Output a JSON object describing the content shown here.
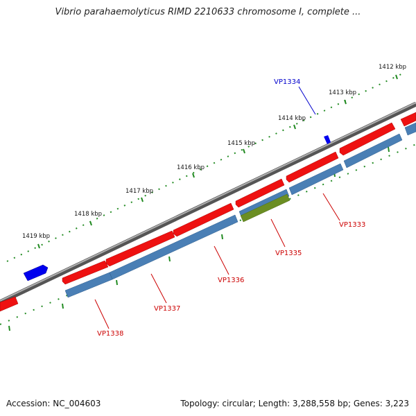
{
  "title": "Vibrio parahaemolyticus RIMD 2210633 chromosome I, complete ...",
  "footer": {
    "accession": "Accession: NC_004603",
    "summary": "Topology: circular; Length: 3,288,558 bp; Genes: 3,223"
  },
  "ticks": [
    "1412 kbp",
    "1413 kbp",
    "1414 kbp",
    "1415 kbp",
    "1416 kbp",
    "1417 kbp",
    "1418 kbp",
    "1419 kbp"
  ],
  "genes": [
    {
      "label": "VP1333",
      "color": "#cc0000"
    },
    {
      "label": "VP1334",
      "color": "#0000cc"
    },
    {
      "label": "VP1335",
      "color": "#cc0000"
    },
    {
      "label": "VP1336",
      "color": "#cc0000"
    },
    {
      "label": "VP1337",
      "color": "#cc0000"
    },
    {
      "label": "VP1338",
      "color": "#cc0000"
    }
  ],
  "colors": {
    "cds_forward": "#ee1111",
    "cds_reverse_bar": "#4a7fb5",
    "cds_highlight": "#6b8e23",
    "small_feature": "#0000ee",
    "backbone": "#808080",
    "ticks": "#228b22"
  }
}
